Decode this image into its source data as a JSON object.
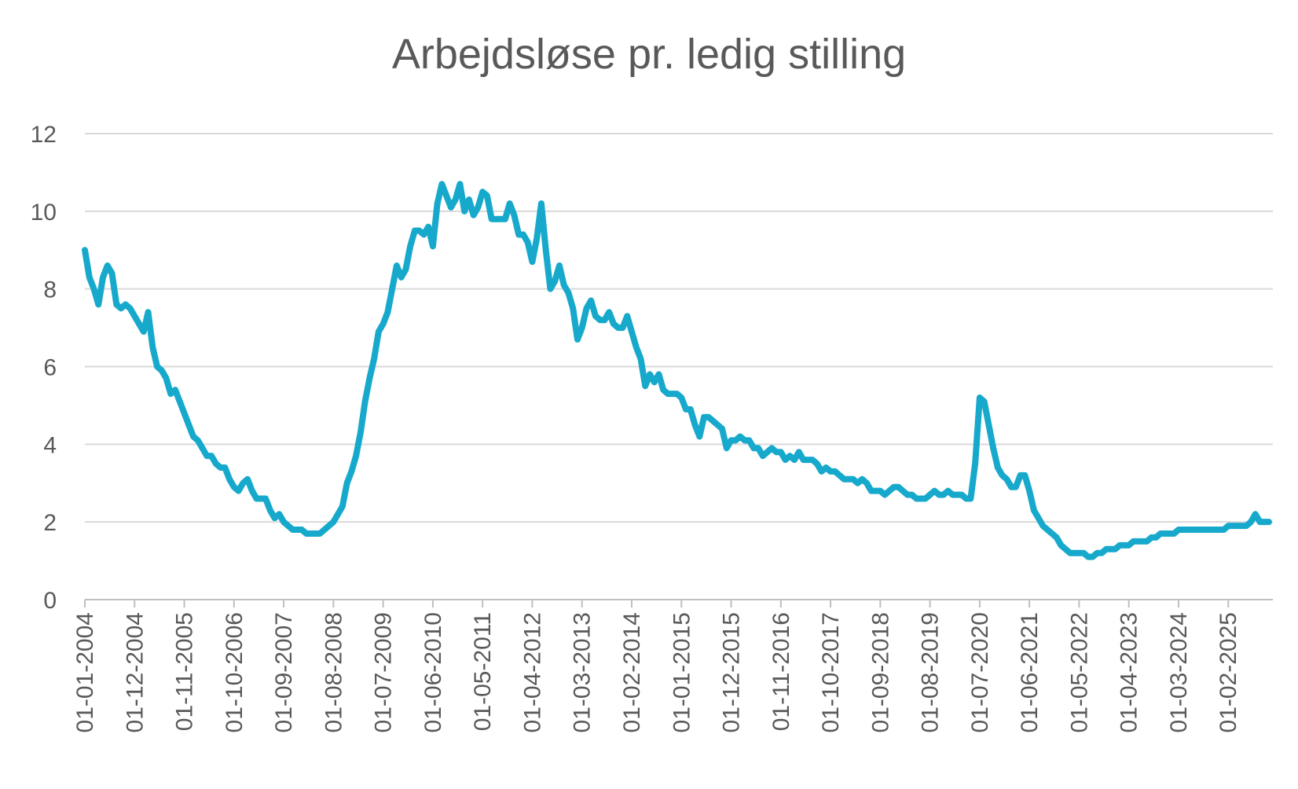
{
  "chart_data": {
    "type": "line",
    "title": "Arbejdsløse pr. ledig stilling",
    "xlabel": "",
    "ylabel": "",
    "ylim": [
      0,
      12
    ],
    "yticks": [
      0,
      2,
      4,
      6,
      8,
      10,
      12
    ],
    "xtick_labels": [
      "01-01-2004",
      "01-12-2004",
      "01-11-2005",
      "01-10-2006",
      "01-09-2007",
      "01-08-2008",
      "01-07-2009",
      "01-06-2010",
      "01-05-2011",
      "01-04-2012",
      "01-03-2013",
      "01-02-2014",
      "01-01-2015",
      "01-12-2015",
      "01-11-2016",
      "01-10-2017",
      "01-09-2018",
      "01-08-2019",
      "01-07-2020",
      "01-06-2021",
      "01-05-2022",
      "01-04-2023",
      "01-03-2024",
      "01-02-2025"
    ],
    "grid": true,
    "legend": "none",
    "colors": {
      "line": "#17A9CC",
      "grid": "#D9D9D9",
      "axis": "#BFBFBF",
      "text": "#595959"
    },
    "series": [
      {
        "start_date": "2004-01",
        "values": [
          9.0,
          8.3,
          8.0,
          7.6,
          8.3,
          8.6,
          8.4,
          7.6,
          7.5,
          7.6,
          7.5,
          7.3,
          7.1,
          6.9,
          7.4,
          6.5,
          6.0,
          5.9,
          5.7,
          5.3,
          5.4,
          5.1,
          4.8,
          4.5,
          4.2,
          4.1,
          3.9,
          3.7,
          3.7,
          3.5,
          3.4,
          3.4,
          3.1,
          2.9,
          2.8,
          3.0,
          3.1,
          2.8,
          2.6,
          2.6,
          2.6,
          2.3,
          2.1,
          2.2,
          2.0,
          1.9,
          1.8,
          1.8,
          1.8,
          1.7,
          1.7,
          1.7,
          1.7,
          1.8,
          1.9,
          2.0,
          2.2,
          2.4,
          3.0,
          3.3,
          3.7,
          4.3,
          5.1,
          5.7,
          6.2,
          6.9,
          7.1,
          7.4,
          8.0,
          8.6,
          8.3,
          8.5,
          9.1,
          9.5,
          9.5,
          9.4,
          9.6,
          9.1,
          10.2,
          10.7,
          10.4,
          10.1,
          10.3,
          10.7,
          10.0,
          10.3,
          9.9,
          10.1,
          10.5,
          10.4,
          9.8,
          9.8,
          9.8,
          9.8,
          10.2,
          9.9,
          9.4,
          9.4,
          9.2,
          8.7,
          9.3,
          10.2,
          9.0,
          8.0,
          8.2,
          8.6,
          8.1,
          7.9,
          7.5,
          6.7,
          7.0,
          7.5,
          7.7,
          7.3,
          7.2,
          7.2,
          7.4,
          7.1,
          7.0,
          7.0,
          7.3,
          6.9,
          6.5,
          6.2,
          5.5,
          5.8,
          5.6,
          5.8,
          5.4,
          5.3,
          5.3,
          5.3,
          5.2,
          4.9,
          4.9,
          4.5,
          4.2,
          4.7,
          4.7,
          4.6,
          4.5,
          4.4,
          3.9,
          4.1,
          4.1,
          4.2,
          4.1,
          4.1,
          3.9,
          3.9,
          3.7,
          3.8,
          3.9,
          3.8,
          3.8,
          3.6,
          3.7,
          3.6,
          3.8,
          3.6,
          3.6,
          3.6,
          3.5,
          3.3,
          3.4,
          3.3,
          3.3,
          3.2,
          3.1,
          3.1,
          3.1,
          3.0,
          3.1,
          3.0,
          2.8,
          2.8,
          2.8,
          2.7,
          2.8,
          2.9,
          2.9,
          2.8,
          2.7,
          2.7,
          2.6,
          2.6,
          2.6,
          2.7,
          2.8,
          2.7,
          2.7,
          2.8,
          2.7,
          2.7,
          2.7,
          2.6,
          2.6,
          3.5,
          5.2,
          5.1,
          4.5,
          3.9,
          3.4,
          3.2,
          3.1,
          2.9,
          2.9,
          3.2,
          3.2,
          2.8,
          2.3,
          2.1,
          1.9,
          1.8,
          1.7,
          1.6,
          1.4,
          1.3,
          1.2,
          1.2,
          1.2,
          1.2,
          1.1,
          1.1,
          1.2,
          1.2,
          1.3,
          1.3,
          1.3,
          1.4,
          1.4,
          1.4,
          1.5,
          1.5,
          1.5,
          1.5,
          1.6,
          1.6,
          1.7,
          1.7,
          1.7,
          1.7,
          1.8,
          1.8,
          1.8,
          1.8,
          1.8,
          1.8,
          1.8,
          1.8,
          1.8,
          1.8,
          1.8,
          1.9,
          1.9,
          1.9,
          1.9,
          1.9,
          2.0,
          2.2,
          2.0,
          2.0,
          2.0
        ]
      }
    ]
  }
}
